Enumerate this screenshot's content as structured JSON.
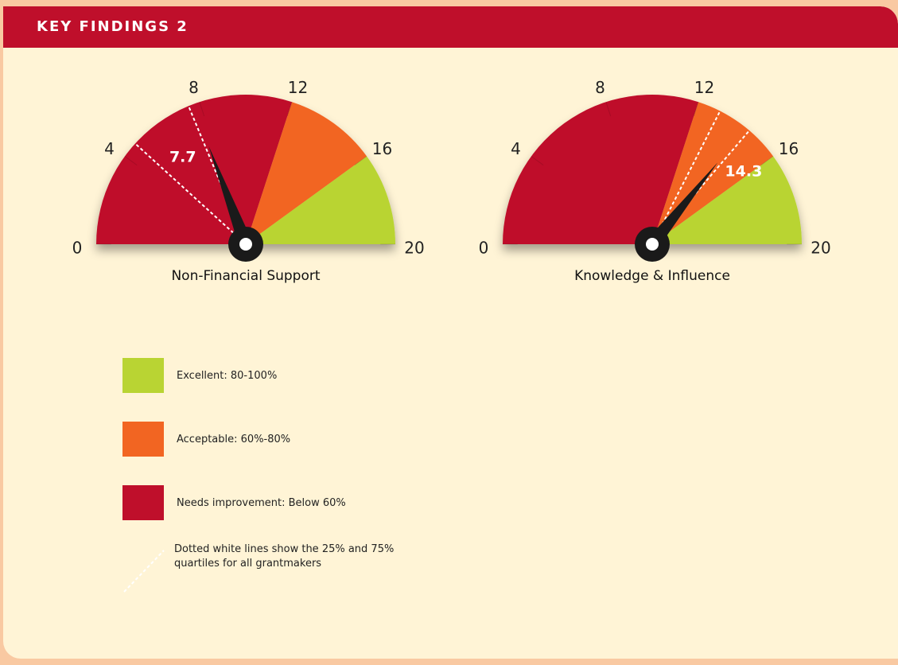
{
  "header": {
    "title": "KEY FINDINGS 2"
  },
  "chart_data": [
    {
      "type": "gauge",
      "title": "Non-Financial Support",
      "value": 7.7,
      "ylim": [
        0,
        20
      ],
      "yticks": [
        0,
        4,
        8,
        12,
        16,
        20
      ],
      "bands": [
        {
          "from": 0,
          "to": 12,
          "color": "#bf0f2b"
        },
        {
          "from": 12,
          "to": 16,
          "color": "#f26522"
        },
        {
          "from": 16,
          "to": 20,
          "color": "#b9d433"
        }
      ],
      "quartiles": [
        4.7,
        7.5
      ]
    },
    {
      "type": "gauge",
      "title": "Knowledge & Influence",
      "value": 14.3,
      "ylim": [
        0,
        20
      ],
      "yticks": [
        0,
        4,
        8,
        12,
        16,
        20
      ],
      "bands": [
        {
          "from": 0,
          "to": 12,
          "color": "#bf0f2b"
        },
        {
          "from": 12,
          "to": 16,
          "color": "#f26522"
        },
        {
          "from": 16,
          "to": 20,
          "color": "#b9d433"
        }
      ],
      "quartiles": [
        13,
        14.5
      ]
    }
  ],
  "legend": {
    "items": [
      {
        "label": "Excellent: 80-100%",
        "color": "#b9d433"
      },
      {
        "label": "Acceptable: 60%-80%",
        "color": "#f26522"
      },
      {
        "label": "Needs improvement: Below 60%",
        "color": "#bf0f2b"
      }
    ],
    "note": "Dotted white lines show the 25% and 75% quartiles for all grantmakers"
  }
}
